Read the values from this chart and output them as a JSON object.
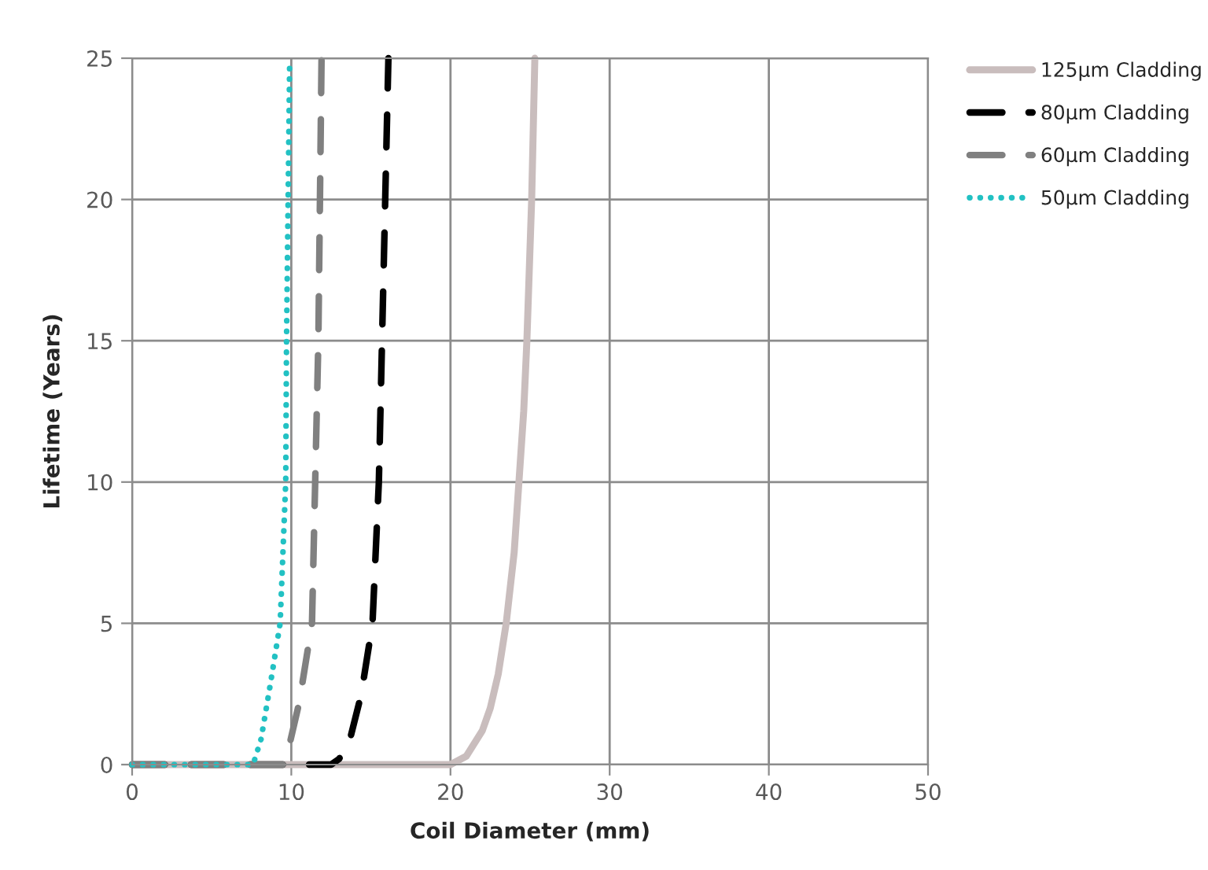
{
  "chart_data": {
    "type": "line",
    "xlabel": "Coil Diameter (mm)",
    "ylabel": "Lifetime (Years)",
    "xlim": [
      0,
      50
    ],
    "xticks": [
      0,
      10,
      20,
      30,
      40,
      50
    ],
    "ylim": [
      0,
      25
    ],
    "yticks": [
      0,
      5,
      10,
      15,
      20,
      25
    ],
    "grid": true,
    "legend": "top right",
    "marker": "none",
    "series": [
      {
        "name": "125µm Cladding",
        "color": "#c9bdbd",
        "line_style": "solid",
        "x": [
          0,
          20,
          21,
          22,
          22.5,
          23,
          23.5,
          24,
          24.3,
          24.6,
          24.8,
          25.1,
          25.3
        ],
        "values": [
          0,
          0,
          0.3,
          1.2,
          2,
          3.2,
          5,
          7.5,
          10,
          12.5,
          15,
          20,
          25
        ]
      },
      {
        "name": "80µm Cladding",
        "color": "#000000",
        "line_style": "dashed",
        "x": [
          0,
          12.5,
          13,
          13.6,
          14.4,
          15.1,
          15.5,
          15.7,
          15.9,
          16.1
        ],
        "values": [
          0,
          0,
          0.2,
          0.7,
          2.5,
          5,
          10,
          15,
          20,
          25
        ]
      },
      {
        "name": "60µm Cladding",
        "color": "#808080",
        "line_style": "dashed",
        "x": [
          0,
          9.5,
          9.8,
          10.5,
          11.3,
          11.5,
          11.7,
          11.8,
          11.9
        ],
        "values": [
          0,
          0,
          0.5,
          2.2,
          5,
          10,
          15,
          20,
          25
        ]
      },
      {
        "name": "50µm Cladding",
        "color": "#22c1c3",
        "line_style": "dotted",
        "x": [
          0,
          7.6,
          8.1,
          8.7,
          9.3,
          9.65,
          9.7,
          9.8,
          9.9
        ],
        "values": [
          0,
          0,
          0.9,
          2.9,
          5,
          10,
          15,
          20,
          25
        ]
      }
    ]
  }
}
